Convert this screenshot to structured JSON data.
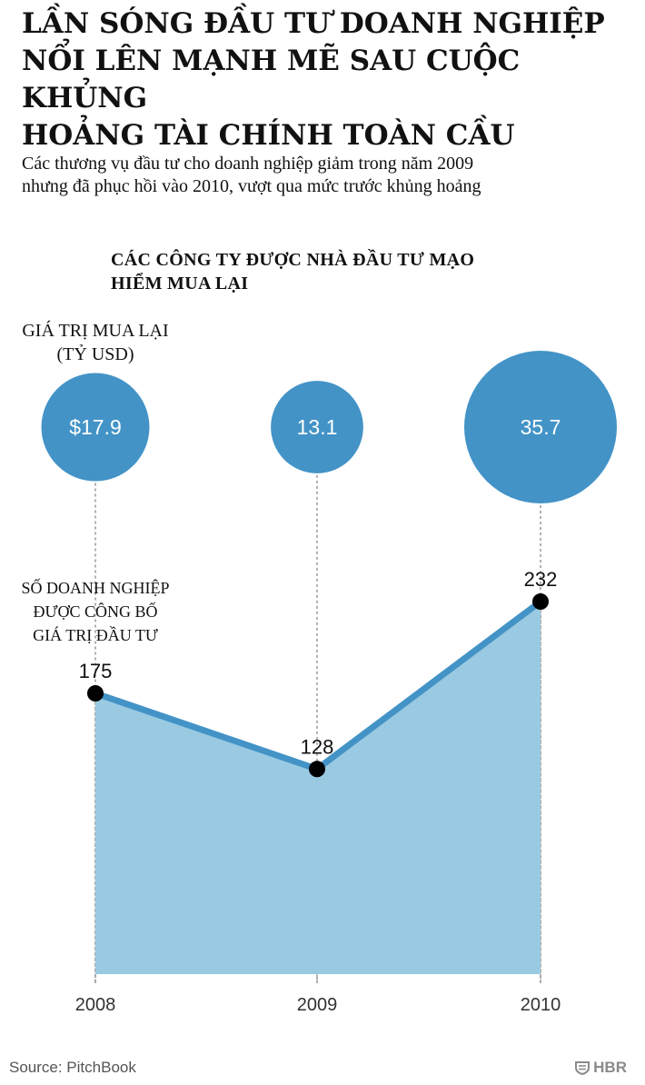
{
  "header": {
    "title_lines": [
      "LẦN SÓNG ĐẦU TƯ DOANH NGHIỆP",
      "NỔI LÊN MẠNH MẼ SAU CUỘC KHỦNG",
      "HOẢNG TÀI CHÍNH TOÀN CẦU"
    ],
    "subtitle_lines": [
      "Các thương vụ đầu tư cho doanh nghiệp giảm trong năm 2009",
      "nhưng đã phục hồi vào 2010, vượt qua mức trước khủng hoảng"
    ]
  },
  "chart_data": {
    "type": "area",
    "title_lines": [
      "CÁC CÔNG TY ĐƯỢC NHÀ ĐẦU TƯ MẠO",
      "HIỂM MUA LẠI"
    ],
    "x": [
      "2008",
      "2009",
      "2010"
    ],
    "series": [
      {
        "key": "acquisition_value",
        "label_lines": [
          "GIÁ TRỊ MUA LẠI",
          "(TỶ USD)"
        ],
        "mark": "bubble",
        "values": [
          17.9,
          13.1,
          35.7
        ],
        "labels": [
          "$17.9",
          "13.1",
          "35.7"
        ]
      },
      {
        "key": "companies_disclosed",
        "label_lines": [
          "SỐ DOANH NGHIỆP",
          "ĐƯỢC CÔNG BỐ",
          "GIÁ TRỊ ĐẦU TƯ"
        ],
        "mark": "area-line",
        "values": [
          175,
          128,
          232
        ],
        "labels": [
          "175",
          "128",
          "232"
        ]
      }
    ],
    "colors": {
      "bubble": "#4393c7",
      "line": "#4393c7",
      "area": "#9acae2",
      "point": "#000000",
      "guide": "#888888"
    }
  },
  "footer": {
    "source": "Source: PitchBook",
    "brand": "HBR"
  }
}
